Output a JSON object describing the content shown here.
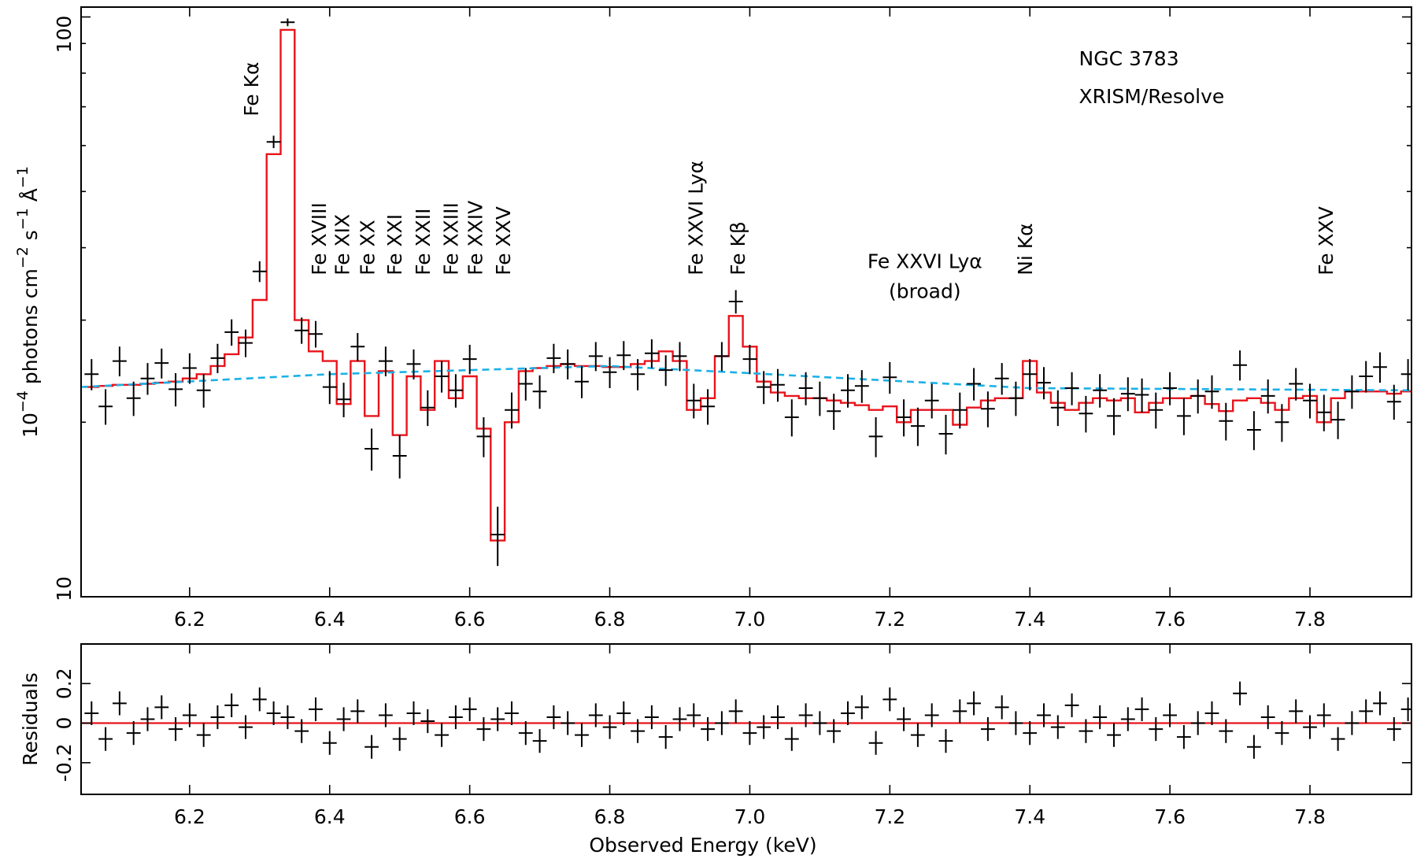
{
  "chart_data": [
    {
      "type": "spectrum",
      "title_lines": [
        "NGC 3783",
        "XRISM/Resolve"
      ],
      "ylabel_parts": [
        "10",
        "−4",
        " photons cm",
        "−2",
        " s",
        "−1",
        " Å",
        "−1"
      ],
      "yscale": "log",
      "xlim": [
        6.045,
        7.945
      ],
      "ylim": [
        10,
        104
      ],
      "xticks": [
        6.2,
        6.4,
        6.6,
        6.8,
        {
          "value": 7,
          "label": "7.0"
        },
        7.2,
        7.4,
        7.6,
        7.8
      ],
      "yticks": [
        10,
        100
      ],
      "yminor": [
        20,
        30,
        40,
        50,
        60,
        70,
        80,
        90
      ],
      "x": [
        6.06,
        6.08,
        6.1,
        6.12,
        6.14,
        6.16,
        6.18,
        6.2,
        6.22,
        6.24,
        6.26,
        6.28,
        6.3,
        6.32,
        6.34,
        6.36,
        6.38,
        6.4,
        6.42,
        6.44,
        6.46,
        6.48,
        6.5,
        6.52,
        6.54,
        6.56,
        6.58,
        6.6,
        6.62,
        6.64,
        6.66,
        6.68,
        6.7,
        6.72,
        6.74,
        6.76,
        6.78,
        6.8,
        6.82,
        6.84,
        6.86,
        6.88,
        6.9,
        6.92,
        6.94,
        6.96,
        6.98,
        7,
        7.02,
        7.04,
        7.06,
        7.08,
        7.1,
        7.12,
        7.14,
        7.16,
        7.18,
        7.2,
        7.22,
        7.24,
        7.26,
        7.28,
        7.3,
        7.32,
        7.34,
        7.36,
        7.38,
        7.4,
        7.42,
        7.44,
        7.46,
        7.48,
        7.5,
        7.52,
        7.54,
        7.56,
        7.58,
        7.6,
        7.62,
        7.64,
        7.66,
        7.68,
        7.7,
        7.72,
        7.74,
        7.76,
        7.78,
        7.8,
        7.82,
        7.84,
        7.86,
        7.88,
        7.9,
        7.92,
        7.94
      ],
      "xerr": 0.01,
      "series": [
        {
          "style": "errorbar",
          "color": "#000000",
          "yerr": 1.5,
          "values": [
            24.2,
            21.3,
            25.5,
            22.0,
            23.8,
            25.3,
            22.8,
            24.8,
            22.7,
            25.8,
            28.6,
            27.4,
            36.4,
            60.9,
            97.9,
            28.8,
            28.4,
            23.0,
            21.9,
            27.0,
            18.0,
            25.5,
            17.5,
            25.2,
            21.2,
            24.0,
            22.7,
            25.7,
            18.9,
            12.8,
            21.0,
            23.3,
            22.6,
            25.8,
            25.2,
            23.5,
            26.0,
            24.4,
            26.1,
            24.2,
            26.3,
            24.6,
            26.0,
            21.8,
            21.3,
            26.0,
            32.3,
            25.7,
            23.0,
            23.2,
            20.4,
            22.9,
            22.0,
            20.9,
            22.7,
            23.1,
            18.9,
            23.9,
            20.4,
            19.7,
            21.8,
            19.1,
            21.0,
            23.3,
            21.1,
            23.8,
            22.0,
            24.2,
            23.4,
            21.2,
            22.9,
            20.7,
            22.7,
            20.5,
            22.4,
            22.3,
            21.0,
            22.9,
            20.5,
            22.2,
            22.6,
            20.1,
            25.1,
            19.4,
            22.2,
            20.0,
            23.3,
            21.8,
            20.8,
            20.2,
            22.6,
            24.0,
            24.9,
            21.7,
            24.2
          ]
        },
        {
          "style": "step",
          "color": "#e8141c",
          "values": [
            23.0,
            23.1,
            23.2,
            23.2,
            23.3,
            23.4,
            23.5,
            23.8,
            24.2,
            25.0,
            26.2,
            28.0,
            32.5,
            58,
            95,
            30,
            26.5,
            25.5,
            21.5,
            25.5,
            20.5,
            24.5,
            19.0,
            24.0,
            21.0,
            25.5,
            22.0,
            24.0,
            19.5,
            12.5,
            20.0,
            24.5,
            24.8,
            25.0,
            25.2,
            25.0,
            25.0,
            24.9,
            24.9,
            25.2,
            25.5,
            26.5,
            25.5,
            21.0,
            22.0,
            26.0,
            30.5,
            27.0,
            23.5,
            22.5,
            22.2,
            22.0,
            22.0,
            21.8,
            21.6,
            21.4,
            21.0,
            21.3,
            20.0,
            21.0,
            21.0,
            21.0,
            19.8,
            21.2,
            21.8,
            22.0,
            22.0,
            25.5,
            22.5,
            21.6,
            21.0,
            21.6,
            22.0,
            21.8,
            22.0,
            20.8,
            21.6,
            22.0,
            22.0,
            22.2,
            21.5,
            20.9,
            21.8,
            22.0,
            21.6,
            21.0,
            22.0,
            22.2,
            20.0,
            22.0,
            22.6,
            22.6,
            22.6,
            22.4,
            22.6
          ]
        },
        {
          "style": "dashed",
          "color": "#1bb1e7",
          "x": [
            6.045,
            6.4,
            6.8,
            7.0,
            7.4,
            7.945
          ],
          "values": [
            23.0,
            24.2,
            25.0,
            24.3,
            22.9,
            22.7
          ]
        }
      ],
      "annotations": [
        {
          "text": "Fe Kα",
          "x": 6.29
        },
        {
          "text": "Fe XVIII",
          "x": 6.387
        },
        {
          "text": "Fe XIX",
          "x": 6.42
        },
        {
          "text": "Fe XX",
          "x": 6.456
        },
        {
          "text": "Fe XXI",
          "x": 6.495
        },
        {
          "text": "Fe XXII",
          "x": 6.535
        },
        {
          "text": "Fe XXIII",
          "x": 6.575
        },
        {
          "text": "Fe XXIV",
          "x": 6.61
        },
        {
          "text": "Fe XXV",
          "x": 6.65
        },
        {
          "text": "Fe XXVI Lyα",
          "x": 6.925
        },
        {
          "text": "Fe Kβ",
          "x": 6.985
        },
        {
          "text": "Ni Kα",
          "x": 7.395
        },
        {
          "text": "Fe XXV",
          "x": 7.825
        }
      ],
      "broad_label": {
        "lines": [
          "Fe XXVI Lyα",
          "(broad)"
        ],
        "x": 7.25
      }
    },
    {
      "type": "residuals",
      "ylabel": "Residuals",
      "xlabel": "Observed Energy (keV)",
      "xlim": [
        6.045,
        7.945
      ],
      "ylim": [
        -0.36,
        0.4
      ],
      "xticks": [
        6.2,
        6.4,
        6.6,
        6.8,
        {
          "value": 7,
          "label": "7.0"
        },
        7.2,
        7.4,
        7.6,
        7.8
      ],
      "yticks": [
        -0.2,
        0,
        0.2
      ],
      "x": [
        6.06,
        6.08,
        6.1,
        6.12,
        6.14,
        6.16,
        6.18,
        6.2,
        6.22,
        6.24,
        6.26,
        6.28,
        6.3,
        6.32,
        6.34,
        6.36,
        6.38,
        6.4,
        6.42,
        6.44,
        6.46,
        6.48,
        6.5,
        6.52,
        6.54,
        6.56,
        6.58,
        6.6,
        6.62,
        6.64,
        6.66,
        6.68,
        6.7,
        6.72,
        6.74,
        6.76,
        6.78,
        6.8,
        6.82,
        6.84,
        6.86,
        6.88,
        6.9,
        6.92,
        6.94,
        6.96,
        6.98,
        7,
        7.02,
        7.04,
        7.06,
        7.08,
        7.1,
        7.12,
        7.14,
        7.16,
        7.18,
        7.2,
        7.22,
        7.24,
        7.26,
        7.28,
        7.3,
        7.32,
        7.34,
        7.36,
        7.38,
        7.4,
        7.42,
        7.44,
        7.46,
        7.48,
        7.5,
        7.52,
        7.54,
        7.56,
        7.58,
        7.6,
        7.62,
        7.64,
        7.66,
        7.68,
        7.7,
        7.72,
        7.74,
        7.76,
        7.78,
        7.8,
        7.82,
        7.84,
        7.86,
        7.88,
        7.9,
        7.92,
        7.94
      ],
      "xerr": 0.01,
      "series": [
        {
          "style": "errorbar",
          "color": "#000000",
          "yerr": 0.06,
          "values": [
            0.05,
            -0.08,
            0.1,
            -0.05,
            0.02,
            0.08,
            -0.03,
            0.04,
            -0.06,
            0.03,
            0.09,
            -0.02,
            0.12,
            0.05,
            0.03,
            -0.04,
            0.07,
            -0.1,
            0.02,
            0.06,
            -0.12,
            0.04,
            -0.08,
            0.05,
            0.01,
            -0.06,
            0.03,
            0.07,
            -0.03,
            0.02,
            0.05,
            -0.05,
            -0.09,
            0.03,
            0.0,
            -0.06,
            0.04,
            -0.02,
            0.05,
            -0.04,
            0.03,
            -0.07,
            0.02,
            0.04,
            -0.03,
            0.0,
            0.06,
            -0.05,
            -0.02,
            0.03,
            -0.08,
            0.04,
            0.0,
            -0.04,
            0.05,
            0.08,
            -0.1,
            0.12,
            0.02,
            -0.06,
            0.04,
            -0.09,
            0.06,
            0.1,
            -0.03,
            0.08,
            0.0,
            -0.05,
            0.04,
            -0.02,
            0.09,
            -0.04,
            0.03,
            -0.06,
            0.02,
            0.07,
            -0.03,
            0.04,
            -0.07,
            0.0,
            0.05,
            -0.04,
            0.15,
            -0.12,
            0.03,
            -0.05,
            0.06,
            -0.02,
            0.04,
            -0.08,
            0.0,
            0.06,
            0.1,
            -0.03,
            0.07
          ]
        }
      ],
      "zero_line": {
        "value": 0,
        "color": "#e8141c"
      }
    }
  ]
}
